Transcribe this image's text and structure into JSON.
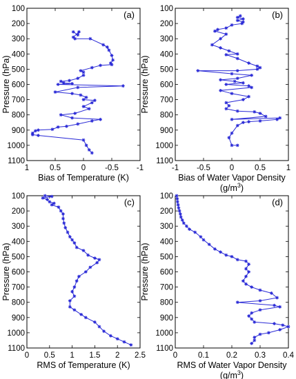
{
  "colors": {
    "series": "#2929d6",
    "axes": "#000000"
  },
  "chart_data": [
    {
      "type": "line",
      "panel_label": "(a)",
      "xlabel": "Bias of Temperature (K)",
      "ylabel": "Pressure (hPa)",
      "xlim": [
        1,
        -1
      ],
      "ylim": [
        100,
        1100
      ],
      "x_ticks": [
        1,
        0.5,
        0,
        -0.5,
        -1
      ],
      "x_tick_labels": [
        "1",
        "0.5",
        "0",
        "-0.5",
        "-1"
      ],
      "y_ticks": [
        100,
        200,
        300,
        400,
        500,
        600,
        700,
        800,
        900,
        1000,
        1100
      ],
      "y_tick_labels": [
        "100",
        "200",
        "300",
        "400",
        "500",
        "600",
        "700",
        "800",
        "900",
        "1000",
        "1100"
      ],
      "y_inverted": true,
      "series": [
        {
          "marker": "star",
          "points": [
            [
              0.18,
              255
            ],
            [
              0.1,
              275
            ],
            [
              0.08,
              255
            ],
            [
              0.18,
              290
            ],
            [
              0.15,
              300
            ],
            [
              -0.12,
              300
            ],
            [
              -0.35,
              340
            ],
            [
              -0.42,
              355
            ],
            [
              -0.45,
              375
            ],
            [
              -0.5,
              410
            ],
            [
              -0.52,
              440
            ],
            [
              -0.48,
              460
            ],
            [
              -0.5,
              470
            ],
            [
              -0.3,
              475
            ],
            [
              -0.15,
              490
            ],
            [
              0.05,
              510
            ],
            [
              0.0,
              520
            ],
            [
              0.0,
              540
            ],
            [
              0.1,
              560
            ],
            [
              0.25,
              575
            ],
            [
              0.4,
              580
            ],
            [
              0.35,
              590
            ],
            [
              0.2,
              595
            ],
            [
              0.45,
              600
            ],
            [
              -0.7,
              610
            ],
            [
              0.1,
              620
            ],
            [
              0.5,
              650
            ],
            [
              0.2,
              660
            ],
            [
              0.05,
              670
            ],
            [
              -0.05,
              685
            ],
            [
              0.0,
              700
            ],
            [
              -0.2,
              705
            ],
            [
              -0.15,
              720
            ],
            [
              0.0,
              745
            ],
            [
              -0.1,
              760
            ],
            [
              0.15,
              790
            ],
            [
              0.4,
              800
            ],
            [
              0.2,
              820
            ],
            [
              -0.3,
              830
            ],
            [
              -0.15,
              840
            ],
            [
              0.1,
              860
            ],
            [
              0.3,
              875
            ],
            [
              0.45,
              880
            ],
            [
              0.55,
              895
            ],
            [
              0.8,
              900
            ],
            [
              0.85,
              905
            ],
            [
              0.9,
              920
            ],
            [
              0.9,
              930
            ],
            [
              0.8,
              935
            ],
            [
              0.0,
              965
            ],
            [
              -0.05,
              1000
            ],
            [
              -0.1,
              1030
            ],
            [
              -0.15,
              1050
            ]
          ]
        }
      ]
    },
    {
      "type": "line",
      "panel_label": "(b)",
      "xlabel": "Bias of Water Vapor Density",
      "xlabel_unit_base": "(g/m",
      "xlabel_unit_exp": "3",
      "xlabel_unit_close": ")",
      "ylabel": "Pressure (hPa)",
      "xlim": [
        -1,
        1
      ],
      "ylim": [
        100,
        1100
      ],
      "x_ticks": [
        -1,
        -0.5,
        0,
        0.5,
        1
      ],
      "x_tick_labels": [
        "-1",
        "-0.5",
        "0",
        "0.5",
        "1"
      ],
      "y_ticks": [
        100,
        200,
        300,
        400,
        500,
        600,
        700,
        800,
        900,
        1000,
        1100
      ],
      "y_tick_labels": [
        "100",
        "200",
        "300",
        "400",
        "500",
        "600",
        "700",
        "800",
        "900",
        "1000",
        "1100"
      ],
      "y_inverted": true,
      "series": [
        {
          "marker": "star",
          "points": [
            [
              0.15,
              150
            ],
            [
              0.1,
              160
            ],
            [
              0.2,
              170
            ],
            [
              0.1,
              180
            ],
            [
              0.2,
              190
            ],
            [
              0.18,
              200
            ],
            [
              0.0,
              210
            ],
            [
              -0.1,
              230
            ],
            [
              -0.25,
              240
            ],
            [
              -0.3,
              250
            ],
            [
              -0.1,
              270
            ],
            [
              -0.2,
              300
            ],
            [
              -0.35,
              340
            ],
            [
              -0.2,
              360
            ],
            [
              -0.05,
              380
            ],
            [
              0.1,
              400
            ],
            [
              -0.1,
              405
            ],
            [
              0.1,
              430
            ],
            [
              0.3,
              460
            ],
            [
              0.45,
              480
            ],
            [
              0.5,
              490
            ],
            [
              0.45,
              500
            ],
            [
              0.1,
              510
            ],
            [
              -0.6,
              510
            ],
            [
              0.0,
              530
            ],
            [
              0.35,
              540
            ],
            [
              0.1,
              560
            ],
            [
              -0.2,
              570
            ],
            [
              0.05,
              580
            ],
            [
              0.2,
              590
            ],
            [
              -0.1,
              600
            ],
            [
              0.3,
              610
            ],
            [
              0.35,
              620
            ],
            [
              -0.2,
              640
            ],
            [
              0.0,
              660
            ],
            [
              0.3,
              680
            ],
            [
              0.2,
              700
            ],
            [
              -0.1,
              720
            ],
            [
              -0.05,
              740
            ],
            [
              -0.1,
              760
            ],
            [
              0.1,
              775
            ],
            [
              0.4,
              780
            ],
            [
              0.5,
              790
            ],
            [
              0.6,
              810
            ],
            [
              0.0,
              830
            ],
            [
              0.85,
              820
            ],
            [
              0.8,
              830
            ],
            [
              0.5,
              840
            ],
            [
              0.3,
              845
            ],
            [
              0.2,
              850
            ],
            [
              0.1,
              870
            ],
            [
              0.0,
              920
            ],
            [
              -0.05,
              950
            ],
            [
              0.0,
              1000
            ],
            [
              0.1,
              1000
            ]
          ]
        }
      ]
    },
    {
      "type": "line",
      "panel_label": "(c)",
      "xlabel": "RMS of Temperature (K)",
      "ylabel": "Pressure (hPa)",
      "xlim": [
        0,
        2.5
      ],
      "ylim": [
        100,
        1100
      ],
      "x_ticks": [
        0,
        0.5,
        1,
        1.5,
        2,
        2.5
      ],
      "x_tick_labels": [
        "0",
        "0.5",
        "1",
        "1.5",
        "2",
        "2.5"
      ],
      "y_ticks": [
        100,
        200,
        300,
        400,
        500,
        600,
        700,
        800,
        900,
        1000,
        1100
      ],
      "y_tick_labels": [
        "100",
        "200",
        "300",
        "400",
        "500",
        "600",
        "700",
        "800",
        "900",
        "1000",
        "1100"
      ],
      "y_inverted": true,
      "series": [
        {
          "marker": "star",
          "points": [
            [
              0.4,
              100
            ],
            [
              0.55,
              105
            ],
            [
              0.35,
              115
            ],
            [
              0.45,
              125
            ],
            [
              0.5,
              140
            ],
            [
              0.6,
              150
            ],
            [
              0.55,
              160
            ],
            [
              0.7,
              175
            ],
            [
              0.75,
              200
            ],
            [
              0.8,
              220
            ],
            [
              0.8,
              250
            ],
            [
              0.82,
              280
            ],
            [
              0.85,
              310
            ],
            [
              0.9,
              340
            ],
            [
              0.95,
              370
            ],
            [
              1.0,
              390
            ],
            [
              1.05,
              410
            ],
            [
              1.1,
              440
            ],
            [
              1.25,
              460
            ],
            [
              1.35,
              490
            ],
            [
              1.5,
              510
            ],
            [
              1.6,
              520
            ],
            [
              1.55,
              540
            ],
            [
              1.4,
              570
            ],
            [
              1.3,
              600
            ],
            [
              1.15,
              630
            ],
            [
              1.1,
              660
            ],
            [
              1.05,
              700
            ],
            [
              1.0,
              730
            ],
            [
              1.05,
              760
            ],
            [
              0.95,
              790
            ],
            [
              0.95,
              830
            ],
            [
              1.05,
              850
            ],
            [
              1.2,
              880
            ],
            [
              1.3,
              900
            ],
            [
              1.5,
              930
            ],
            [
              1.6,
              960
            ],
            [
              1.7,
              990
            ],
            [
              1.85,
              1020
            ],
            [
              2.0,
              1040
            ],
            [
              2.15,
              1060
            ],
            [
              2.3,
              1080
            ]
          ]
        }
      ]
    },
    {
      "type": "line",
      "panel_label": "(d)",
      "xlabel": "RMS of Water Vapor Density",
      "xlabel_unit_base": "(g/m",
      "xlabel_unit_exp": "3",
      "xlabel_unit_close": ")",
      "ylabel": "Pressure (hPa)",
      "xlim": [
        0,
        0.4
      ],
      "ylim": [
        100,
        1100
      ],
      "x_ticks": [
        0,
        0.1,
        0.2,
        0.3,
        0.4
      ],
      "x_tick_labels": [
        "0",
        "0.1",
        "0.2",
        "0.3",
        "0.4"
      ],
      "y_ticks": [
        100,
        200,
        300,
        400,
        500,
        600,
        700,
        800,
        900,
        1000,
        1100
      ],
      "y_tick_labels": [
        "100",
        "200",
        "300",
        "400",
        "500",
        "600",
        "700",
        "800",
        "900",
        "1000",
        "1100"
      ],
      "y_inverted": true,
      "series": [
        {
          "marker": "star",
          "points": [
            [
              0.005,
              100
            ],
            [
              0.007,
              120
            ],
            [
              0.008,
              140
            ],
            [
              0.01,
              160
            ],
            [
              0.012,
              180
            ],
            [
              0.015,
              200
            ],
            [
              0.018,
              220
            ],
            [
              0.02,
              240
            ],
            [
              0.025,
              260
            ],
            [
              0.03,
              280
            ],
            [
              0.04,
              300
            ],
            [
              0.05,
              320
            ],
            [
              0.07,
              340
            ],
            [
              0.09,
              370
            ],
            [
              0.1,
              390
            ],
            [
              0.12,
              420
            ],
            [
              0.14,
              450
            ],
            [
              0.16,
              470
            ],
            [
              0.18,
              490
            ],
            [
              0.2,
              500
            ],
            [
              0.22,
              520
            ],
            [
              0.25,
              530
            ],
            [
              0.26,
              550
            ],
            [
              0.25,
              580
            ],
            [
              0.26,
              600
            ],
            [
              0.25,
              630
            ],
            [
              0.24,
              660
            ],
            [
              0.25,
              680
            ],
            [
              0.27,
              700
            ],
            [
              0.3,
              720
            ],
            [
              0.34,
              740
            ],
            [
              0.36,
              770
            ],
            [
              0.3,
              790
            ],
            [
              0.22,
              800
            ],
            [
              0.35,
              820
            ],
            [
              0.37,
              830
            ],
            [
              0.3,
              850
            ],
            [
              0.27,
              870
            ],
            [
              0.26,
              890
            ],
            [
              0.27,
              910
            ],
            [
              0.28,
              930
            ],
            [
              0.35,
              940
            ],
            [
              0.38,
              950
            ],
            [
              0.4,
              960
            ],
            [
              0.37,
              980
            ],
            [
              0.33,
              1000
            ],
            [
              0.3,
              1010
            ],
            [
              0.28,
              1030
            ],
            [
              0.28,
              1050
            ],
            [
              0.27,
              1070
            ]
          ]
        }
      ]
    }
  ]
}
